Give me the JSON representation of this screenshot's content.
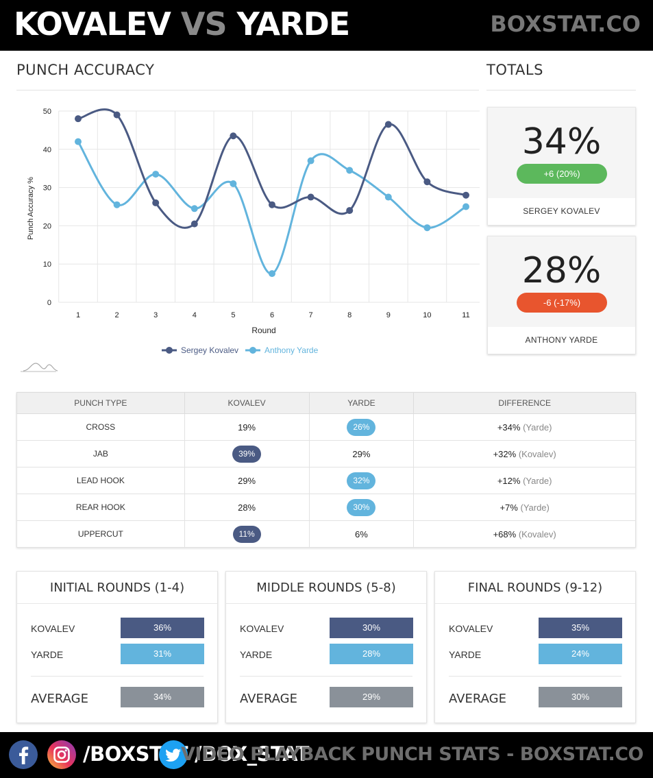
{
  "header": {
    "name_left": "KOVALEV",
    "vs": "VS",
    "name_right": "YARDE",
    "brand": "BOXSTAT.CO"
  },
  "sections": {
    "accuracy_title": "PUNCH ACCURACY",
    "totals_title": "TOTALS"
  },
  "chart_data": {
    "type": "line",
    "title": "",
    "xlabel": "Round",
    "ylabel": "Punch Accuracy %",
    "x": [
      1,
      2,
      3,
      4,
      5,
      6,
      7,
      8,
      9,
      10,
      11
    ],
    "ylim": [
      0,
      50
    ],
    "yticks": [
      0,
      10,
      20,
      30,
      40,
      50
    ],
    "grid": true,
    "legend_position": "bottom",
    "series": [
      {
        "name": "Sergey Kovalev",
        "color": "#4a5a83",
        "values": [
          48,
          49,
          26,
          20.5,
          43.5,
          25.5,
          27.5,
          24,
          46.5,
          31.5,
          28
        ]
      },
      {
        "name": "Anthony Yarde",
        "color": "#62b4dd",
        "values": [
          42,
          25.5,
          33.5,
          24.5,
          31,
          7.5,
          37,
          34.5,
          27.5,
          19.5,
          25
        ]
      }
    ]
  },
  "totals": [
    {
      "pct": "34%",
      "change": "+6 (20%)",
      "name": "SERGEY KOVALEV",
      "color": "#5cb85c"
    },
    {
      "pct": "28%",
      "change": "-6 (-17%)",
      "name": "ANTHONY YARDE",
      "color": "#e8552e"
    }
  ],
  "table": {
    "headers": [
      "PUNCH TYPE",
      "KOVALEV",
      "YARDE",
      "DIFFERENCE"
    ],
    "rows": [
      {
        "type": "CROSS",
        "kovalev": "19%",
        "yarde": "26%",
        "diff": "+34%",
        "who": "(Yarde)",
        "hl": "yarde"
      },
      {
        "type": "JAB",
        "kovalev": "39%",
        "yarde": "29%",
        "diff": "+32%",
        "who": "(Kovalev)",
        "hl": "kovalev"
      },
      {
        "type": "LEAD HOOK",
        "kovalev": "29%",
        "yarde": "32%",
        "diff": "+12%",
        "who": "(Yarde)",
        "hl": "yarde"
      },
      {
        "type": "REAR HOOK",
        "kovalev": "28%",
        "yarde": "30%",
        "diff": "+7%",
        "who": "(Yarde)",
        "hl": "yarde"
      },
      {
        "type": "UPPERCUT",
        "kovalev": "11%",
        "yarde": "6%",
        "diff": "+68%",
        "who": "(Kovalev)",
        "hl": "kovalev"
      }
    ]
  },
  "rounds": [
    {
      "title": "INITIAL ROUNDS (1-4)",
      "kovalev_label": "KOVALEV",
      "kovalev": "36%",
      "yarde_label": "YARDE",
      "yarde": "31%",
      "avg_label": "AVERAGE",
      "avg": "34%"
    },
    {
      "title": "MIDDLE ROUNDS (5-8)",
      "kovalev_label": "KOVALEV",
      "kovalev": "30%",
      "yarde_label": "YARDE",
      "yarde": "28%",
      "avg_label": "AVERAGE",
      "avg": "29%"
    },
    {
      "title": "FINAL ROUNDS (9-12)",
      "kovalev_label": "KOVALEV",
      "kovalev": "35%",
      "yarde_label": "YARDE",
      "yarde": "24%",
      "avg_label": "AVERAGE",
      "avg": "30%"
    }
  ],
  "colors": {
    "kovalev": "#4a5a83",
    "yarde": "#62b4dd",
    "average": "#8a9199"
  },
  "footer": {
    "handle_1": "/BOXSTAT",
    "handle_2": "/BOX_STAT",
    "tagline": "VIDEO PLAYBACK PUNCH STATS - BOXSTAT.CO",
    "icons": [
      "facebook-icon",
      "instagram-icon",
      "twitter-icon"
    ]
  }
}
